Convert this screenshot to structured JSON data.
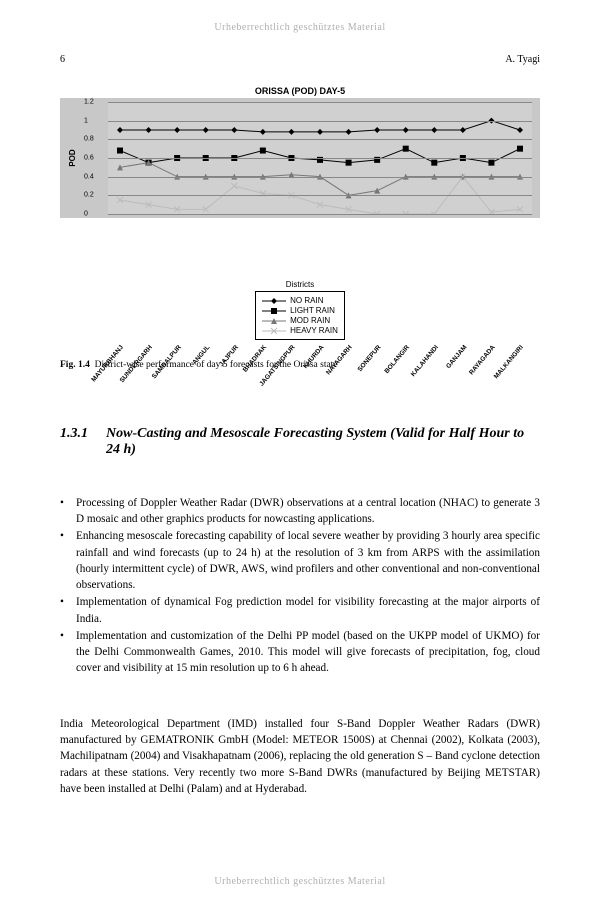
{
  "watermark": "Urheberrechtlich geschütztes Material",
  "page_number": "6",
  "author_running": "A. Tyagi",
  "chart": {
    "type": "line",
    "title": "ORISSA (POD) DAY-5",
    "title_fontsize": 9,
    "ylabel": "POD",
    "ylim": [
      0,
      1.2
    ],
    "ytick_step": 0.2,
    "yticks": [
      "0",
      "0.2",
      "0.4",
      "0.6",
      "0.8",
      "1",
      "1.2"
    ],
    "background_color": "#c8c8c8",
    "plot_bg": "#d0d0d0",
    "grid_color": "#888888",
    "categories": [
      "MAYURBHANJ",
      "SUNDERGARH",
      "SAMBALPUR",
      "ANGUL",
      "JAJPUR",
      "BHADRAK",
      "JAGATSINGPUR",
      "KHURDA",
      "NAYAGARH",
      "SONEPUR",
      "BOLANGIR",
      "KALAHANDI",
      "GANJAM",
      "RAYAGADA",
      "MALKANGIRI"
    ],
    "series": [
      {
        "label": "NO RAIN",
        "marker": "diamond",
        "color": "#000000",
        "dash": "none",
        "values": [
          0.9,
          0.9,
          0.9,
          0.9,
          0.9,
          0.88,
          0.88,
          0.88,
          0.88,
          0.9,
          0.9,
          0.9,
          0.9,
          1.0,
          0.9
        ]
      },
      {
        "label": "LIGHT RAIN",
        "marker": "square",
        "color": "#000000",
        "dash": "none",
        "values": [
          0.68,
          0.55,
          0.6,
          0.6,
          0.6,
          0.68,
          0.6,
          0.58,
          0.55,
          0.58,
          0.7,
          0.55,
          0.6,
          0.55,
          0.7
        ]
      },
      {
        "label": "MOD RAIN",
        "marker": "triangle",
        "color": "#777777",
        "dash": "none",
        "values": [
          0.5,
          0.55,
          0.4,
          0.4,
          0.4,
          0.4,
          0.42,
          0.4,
          0.2,
          0.25,
          0.4,
          0.4,
          0.4,
          0.4,
          0.4
        ]
      },
      {
        "label": "HEAVY RAIN",
        "marker": "x",
        "color": "#bbbbbb",
        "dash": "solid",
        "values": [
          0.15,
          0.1,
          0.05,
          0.05,
          0.3,
          0.22,
          0.2,
          0.1,
          0.05,
          0.0,
          0.0,
          0.0,
          0.4,
          0.02,
          0.05
        ]
      }
    ],
    "legend_title": "Districts",
    "tick_label_rotation_deg": -50,
    "label_fontsize": 7
  },
  "caption_label": "Fig. 1.4",
  "caption_text": "District-wise performance of day 5 forecasts for the Orissa state",
  "section_number": "1.3.1",
  "section_title": "Now-Casting and Mesoscale Forecasting System (Valid for Half Hour to 24 h)",
  "bullets": [
    "Processing of Doppler Weather Radar (DWR) observations at a central location (NHAC) to generate 3 D mosaic and other graphics products for nowcasting applications.",
    "Enhancing mesoscale forecasting capability of local severe weather by providing 3 hourly area specific rainfall and wind forecasts (up to 24 h) at the resolution of 3 km from ARPS with the assimilation (hourly intermittent cycle) of DWR, AWS, wind profilers and other conventional and non-conventional observations.",
    "Implementation of dynamical Fog prediction model for visibility forecasting at the major airports of India.",
    "Implementation and customization of the Delhi PP model (based on the UKPP model of UKMO) for the Delhi Commonwealth Games, 2010. This model will give forecasts of precipitation, fog, cloud cover and visibility at 15 min resolution up to 6 h ahead."
  ],
  "body_paragraph": "India Meteorological Department (IMD) installed four S-Band Doppler Weather Radars (DWR) manufactured by GEMATRONIK GmbH (Model: METEOR 1500S) at Chennai (2002), Kolkata (2003), Machilipatnam (2004) and Visakhapatnam (2006), replacing the old generation S – Band cyclone detection radars at these stations. Very recently two more S-Band DWRs (manufactured by Beijing METSTAR) have been installed at Delhi (Palam) and at Hyderabad."
}
